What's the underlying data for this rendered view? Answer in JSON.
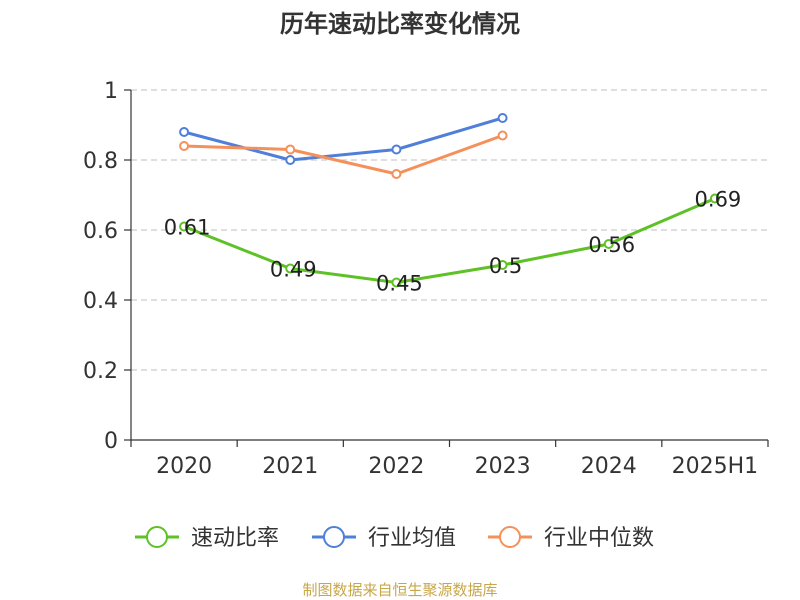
{
  "chart_data": {
    "type": "line",
    "title": "历年速动比率变化情况",
    "categories": [
      "2020",
      "2021",
      "2022",
      "2023",
      "2024",
      "2025H1"
    ],
    "ylim": [
      0,
      1
    ],
    "yticks": [
      "0",
      "0.2",
      "0.4",
      "0.6",
      "0.8",
      "1"
    ],
    "grid": "horizontal-dashed",
    "legend_position": "bottom",
    "series": [
      {
        "name": "速动比率",
        "color": "#5ec125",
        "values": [
          0.61,
          0.49,
          0.45,
          0.5,
          0.56,
          0.69
        ],
        "labels": [
          "0.61",
          "0.49",
          "0.45",
          "0.5",
          "0.56",
          "0.69"
        ]
      },
      {
        "name": "行业均值",
        "color": "#4f7fd8",
        "values": [
          0.88,
          0.8,
          0.83,
          0.92,
          null,
          null
        ]
      },
      {
        "name": "行业中位数",
        "color": "#f5905a",
        "values": [
          0.84,
          0.83,
          0.76,
          0.87,
          null,
          null
        ]
      }
    ],
    "source": "制图数据来自恒生聚源数据库"
  }
}
